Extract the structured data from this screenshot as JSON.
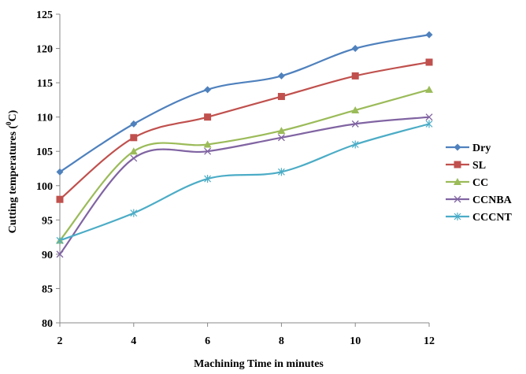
{
  "chart_data": {
    "type": "line",
    "title": "",
    "xlabel": "Machining Time in minutes",
    "ylabel_text": "Cutting temperatures (",
    "ylabel_sup": "0",
    "ylabel_end": "C)",
    "x": [
      2,
      4,
      6,
      8,
      10,
      12
    ],
    "x_tick_labels": [
      "2",
      "4",
      "6",
      "8",
      "10",
      "12"
    ],
    "ylim": [
      80,
      125
    ],
    "y_ticks": [
      80,
      85,
      90,
      95,
      100,
      105,
      110,
      115,
      120,
      125
    ],
    "y_tick_labels": [
      "80",
      "85",
      "90",
      "95",
      "100",
      "105",
      "110",
      "115",
      "120",
      "125"
    ],
    "grid": false,
    "legend_position": "right",
    "smooth_lines": true,
    "series": [
      {
        "name": "Dry",
        "color": "#4F81BD",
        "marker": "diamond",
        "values": [
          102,
          109,
          114,
          116,
          120,
          122
        ]
      },
      {
        "name": "SL",
        "color": "#C0504D",
        "marker": "square",
        "values": [
          98,
          107,
          110,
          113,
          116,
          118
        ]
      },
      {
        "name": "CC",
        "color": "#9BBB59",
        "marker": "triangle",
        "values": [
          92,
          105,
          106,
          108,
          111,
          114
        ]
      },
      {
        "name": "CCNBA",
        "color": "#8064A2",
        "marker": "x",
        "values": [
          90,
          104,
          105,
          107,
          109,
          110
        ]
      },
      {
        "name": "CCCNT",
        "color": "#4BACC6",
        "marker": "star",
        "values": [
          92,
          96,
          101,
          102,
          106,
          109
        ]
      }
    ]
  }
}
